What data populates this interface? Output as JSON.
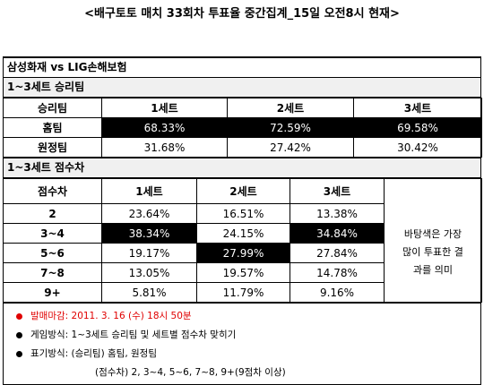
{
  "title": "<배구토토 매치 33회차 투표율 중간집계_15일 오전8시 현재>",
  "match": "삼성화재 vs LIG손해보험",
  "winner_section": {
    "heading": "1~3세트 승리팀",
    "header": [
      "승리팀",
      "1세트",
      "2세트",
      "3세트"
    ],
    "rows": [
      {
        "label": "홈팀",
        "cells": [
          "68.33%",
          "72.59%",
          "69.58%"
        ],
        "highlight": [
          true,
          true,
          true
        ]
      },
      {
        "label": "원정팀",
        "cells": [
          "31.68%",
          "27.42%",
          "30.42%"
        ],
        "highlight": [
          false,
          false,
          false
        ]
      }
    ]
  },
  "score_section": {
    "heading": "1~3세트 점수차",
    "header": [
      "점수차",
      "1세트",
      "2세트",
      "3세트"
    ],
    "rows": [
      {
        "label": "2",
        "cells": [
          "23.64%",
          "16.51%",
          "13.38%"
        ],
        "highlight": [
          false,
          false,
          false
        ]
      },
      {
        "label": "3~4",
        "cells": [
          "38.34%",
          "24.15%",
          "34.84%"
        ],
        "highlight": [
          true,
          false,
          true
        ]
      },
      {
        "label": "5~6",
        "cells": [
          "19.17%",
          "27.99%",
          "27.84%"
        ],
        "highlight": [
          false,
          true,
          false
        ]
      },
      {
        "label": "7~8",
        "cells": [
          "13.05%",
          "19.57%",
          "14.78%"
        ],
        "highlight": [
          false,
          false,
          false
        ]
      },
      {
        "label": "9+",
        "cells": [
          "5.81%",
          "11.79%",
          "9.16%"
        ],
        "highlight": [
          false,
          false,
          false
        ]
      }
    ],
    "note": [
      "바탕색은 가장",
      "많이 투표한 결",
      "과를 의미"
    ]
  },
  "notes": [
    {
      "text": "발매마감: 2011. 3. 16 (수) 18시 50분",
      "color": "#e00000",
      "bullet": true
    },
    {
      "text": "게임방식: 1~3세트 승리팀 및 세트별 점수차 맞히기",
      "color": "#000000",
      "bullet": true
    },
    {
      "text": "표기방식: (승리팀) 홈팀, 원정팀",
      "color": "#000000",
      "bullet": true
    },
    {
      "text": "(점수차) 2, 3~4, 5~6, 7~8, 9+(9점차 이상)",
      "color": "#000000",
      "bullet": false
    }
  ]
}
